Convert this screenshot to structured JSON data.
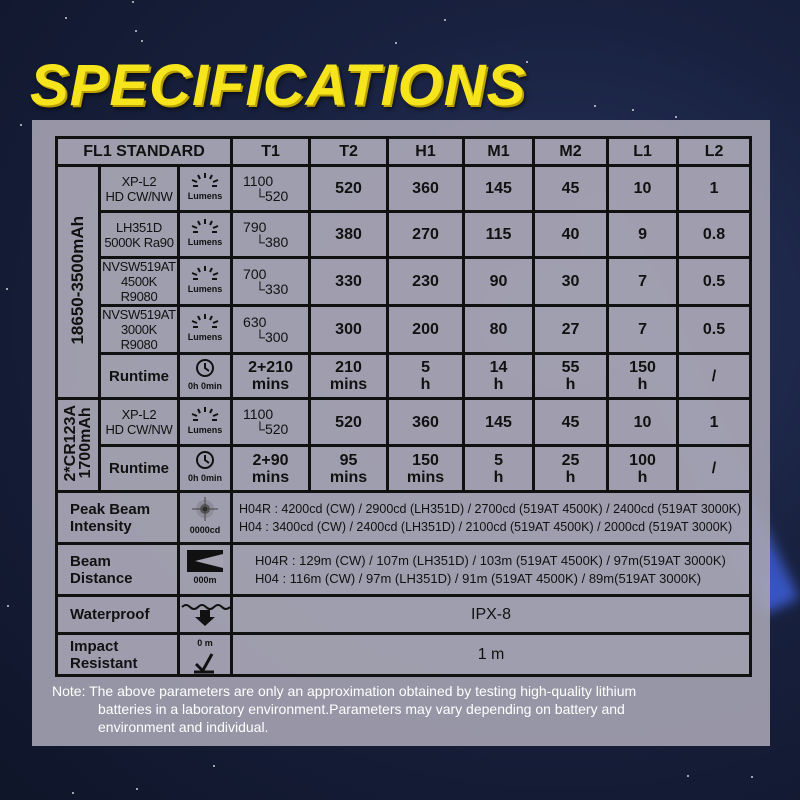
{
  "title": "SPECIFICATIONS",
  "table": {
    "header": [
      "FL1 STANDARD",
      "T1",
      "T2",
      "H1",
      "M1",
      "M2",
      "L1",
      "L2"
    ],
    "battery1": "18650-3500mAh",
    "battery2": "2*CR123A 1700mAh",
    "battery2_lines": [
      "2*CR123A",
      "1700mAh"
    ],
    "lumens_label": "Lumens",
    "runtime_icon_label": "0h 0min",
    "rows18650": [
      {
        "model": [
          "XP-L2",
          "HD CW/NW"
        ],
        "t1": [
          "1100",
          "520"
        ],
        "vals": [
          "520",
          "360",
          "145",
          "45",
          "10",
          "1"
        ]
      },
      {
        "model": [
          "LH351D",
          "5000K Ra90"
        ],
        "t1": [
          "790",
          "380"
        ],
        "vals": [
          "380",
          "270",
          "115",
          "40",
          "9",
          "0.8"
        ]
      },
      {
        "model": [
          "NVSW519AT",
          "4500K R9080"
        ],
        "t1": [
          "700",
          "330"
        ],
        "vals": [
          "330",
          "230",
          "90",
          "30",
          "7",
          "0.5"
        ]
      },
      {
        "model": [
          "NVSW519AT",
          "3000K R9080"
        ],
        "t1": [
          "630",
          "300"
        ],
        "vals": [
          "300",
          "200",
          "80",
          "27",
          "7",
          "0.5"
        ]
      }
    ],
    "runtime18650": {
      "label": "Runtime",
      "vals": [
        [
          "2+210",
          "mins"
        ],
        [
          "210",
          "mins"
        ],
        [
          "5",
          "h"
        ],
        [
          "14",
          "h"
        ],
        [
          "55",
          "h"
        ],
        [
          "150",
          "h"
        ],
        [
          "/",
          ""
        ]
      ]
    },
    "rowCR": {
      "model": [
        "XP-L2",
        "HD CW/NW"
      ],
      "t1": [
        "1100",
        "520"
      ],
      "vals": [
        "520",
        "360",
        "145",
        "45",
        "10",
        "1"
      ]
    },
    "runtimeCR": {
      "label": "Runtime",
      "vals": [
        [
          "2+90",
          "mins"
        ],
        [
          "95",
          "mins"
        ],
        [
          "150",
          "mins"
        ],
        [
          "5",
          "h"
        ],
        [
          "25",
          "h"
        ],
        [
          "100",
          "h"
        ],
        [
          "/",
          ""
        ]
      ]
    },
    "peak": {
      "label": [
        "Peak Beam",
        "Intensity"
      ],
      "icon_label": "0000cd",
      "lines": [
        "H04R : 4200cd (CW) / 2900cd (LH351D) / 2700cd (519AT 4500K) / 2400cd (519AT 3000K)",
        "H04  :  3400cd (CW) / 2400cd (LH351D) / 2100cd (519AT 4500K) / 2000cd (519AT 3000K)"
      ]
    },
    "distance": {
      "label": [
        "Beam",
        "Distance"
      ],
      "icon_label": "000m",
      "lines": [
        "H04R : 129m (CW)  / 107m (LH351D)  / 103m (519AT 4500K) / 97m(519AT 3000K)",
        "H04   : 116m (CW)  / 97m (LH351D)  / 91m (519AT 4500K) / 89m(519AT 3000K)"
      ]
    },
    "waterproof": {
      "label": "Waterproof",
      "value": "IPX-8"
    },
    "impact": {
      "label": [
        "Impact",
        "Resistant"
      ],
      "icon_label": "0 m",
      "value": "1 m"
    }
  },
  "note": {
    "first": "Note: The above parameters are only an approximation obtained by testing high-quality lithium",
    "second": "batteries in a laboratory environment.Parameters may vary depending on battery and",
    "third": "environment and individual."
  },
  "colors": {
    "title": "#f6e51c",
    "panel": "#a5a3b2",
    "border": "#111111",
    "background": "#18213f"
  }
}
